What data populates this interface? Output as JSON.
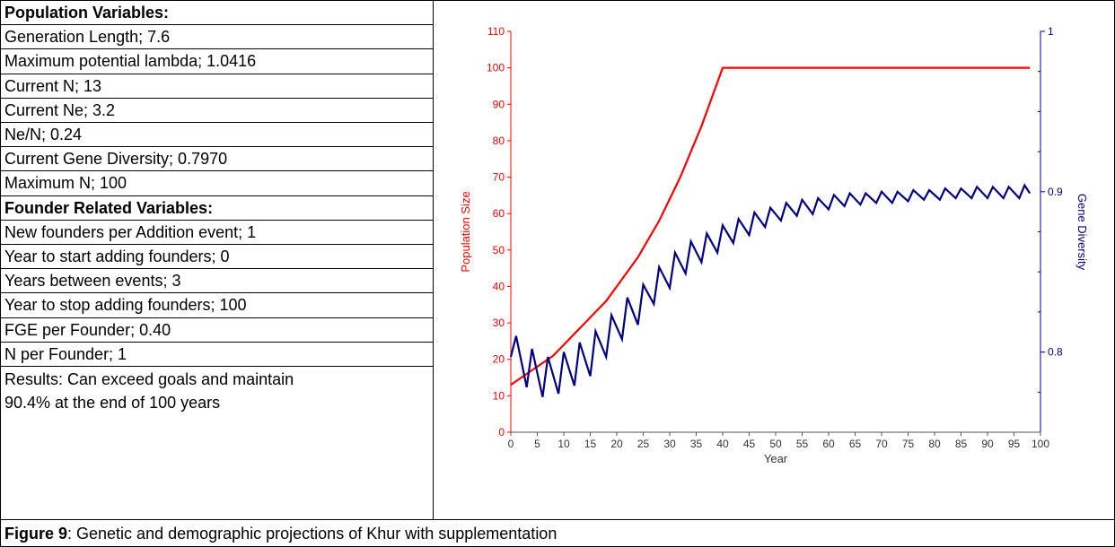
{
  "table": {
    "rows": [
      {
        "text": "Population Variables:",
        "bold": true
      },
      {
        "text": "Generation Length; 7.6",
        "bold": false
      },
      {
        "text": "Maximum potential lambda; 1.0416",
        "bold": false
      },
      {
        "text": "Current N; 13",
        "bold": false
      },
      {
        "text": "Current Ne; 3.2",
        "bold": false
      },
      {
        "text": "Ne/N; 0.24",
        "bold": false
      },
      {
        "text": "Current Gene Diversity; 0.7970",
        "bold": false
      },
      {
        "text": "Maximum N; 100",
        "bold": false
      },
      {
        "text": "Founder Related Variables:",
        "bold": true
      },
      {
        "text": "New founders per Addition event; 1",
        "bold": false
      },
      {
        "text": "Year to start adding founders; 0",
        "bold": false
      },
      {
        "text": "Years between events; 3",
        "bold": false
      },
      {
        "text": "Year to stop adding founders; 100",
        "bold": false
      },
      {
        "text": "FGE per Founder; 0.40",
        "bold": false
      },
      {
        "text": "N per Founder; 1",
        "bold": false
      }
    ],
    "results": "Results: Can exceed goals and maintain 90.4% at the end of 100 years"
  },
  "caption": {
    "label": "Figure 9",
    "text": ": Genetic and demographic projections of Khur with supplementation"
  },
  "chart_data": {
    "type": "line",
    "xlabel": "Year",
    "ylabel": "Population Size",
    "y2label": "Gene Diversity",
    "xlim": [
      0,
      100
    ],
    "ylim": [
      0,
      110
    ],
    "y2lim": [
      0.75,
      1.0
    ],
    "xticks": [
      0,
      5,
      10,
      15,
      20,
      25,
      30,
      35,
      40,
      45,
      50,
      55,
      60,
      65,
      70,
      75,
      80,
      85,
      90,
      95,
      100
    ],
    "yticks": [
      0,
      10,
      20,
      30,
      40,
      50,
      60,
      70,
      80,
      90,
      100,
      110
    ],
    "y2ticks_labeled": [
      0.8,
      0.9,
      1
    ],
    "y2ticks_minor": [
      0.775,
      0.825,
      0.85,
      0.875,
      0.925,
      0.95,
      0.975
    ],
    "series": [
      {
        "name": "Population Size",
        "axis": "left",
        "color": "#ff0000",
        "x": [
          0,
          2,
          4,
          6,
          8,
          10,
          12,
          14,
          16,
          18,
          20,
          22,
          24,
          26,
          28,
          30,
          32,
          34,
          36,
          38,
          40,
          45,
          50,
          55,
          60,
          65,
          70,
          75,
          80,
          85,
          90,
          95,
          98
        ],
        "y": [
          13,
          15,
          17,
          19,
          21,
          24,
          27,
          30,
          33,
          36,
          40,
          44,
          48,
          53,
          58,
          64,
          70,
          77,
          84,
          92,
          100,
          100,
          100,
          100,
          100,
          100,
          100,
          100,
          100,
          100,
          100,
          100,
          100
        ]
      },
      {
        "name": "Gene Diversity",
        "axis": "right",
        "color": "#000080",
        "x": [
          0,
          1,
          3,
          4,
          6,
          7,
          9,
          10,
          12,
          13,
          15,
          16,
          18,
          19,
          21,
          22,
          24,
          25,
          27,
          28,
          30,
          31,
          33,
          34,
          36,
          37,
          39,
          40,
          42,
          43,
          45,
          46,
          48,
          49,
          51,
          52,
          54,
          55,
          57,
          58,
          60,
          61,
          63,
          64,
          66,
          67,
          69,
          70,
          72,
          73,
          75,
          76,
          78,
          79,
          81,
          82,
          84,
          85,
          87,
          88,
          90,
          91,
          93,
          94,
          96,
          97,
          98
        ],
        "y": [
          0.797,
          0.81,
          0.778,
          0.802,
          0.772,
          0.797,
          0.774,
          0.8,
          0.779,
          0.806,
          0.785,
          0.813,
          0.797,
          0.823,
          0.808,
          0.834,
          0.817,
          0.842,
          0.83,
          0.853,
          0.84,
          0.862,
          0.849,
          0.869,
          0.856,
          0.874,
          0.862,
          0.879,
          0.868,
          0.883,
          0.873,
          0.887,
          0.878,
          0.89,
          0.882,
          0.893,
          0.885,
          0.895,
          0.886,
          0.896,
          0.889,
          0.898,
          0.891,
          0.899,
          0.892,
          0.899,
          0.893,
          0.9,
          0.893,
          0.9,
          0.894,
          0.901,
          0.895,
          0.901,
          0.895,
          0.902,
          0.896,
          0.902,
          0.896,
          0.903,
          0.896,
          0.903,
          0.896,
          0.903,
          0.896,
          0.904,
          0.899
        ]
      }
    ]
  }
}
